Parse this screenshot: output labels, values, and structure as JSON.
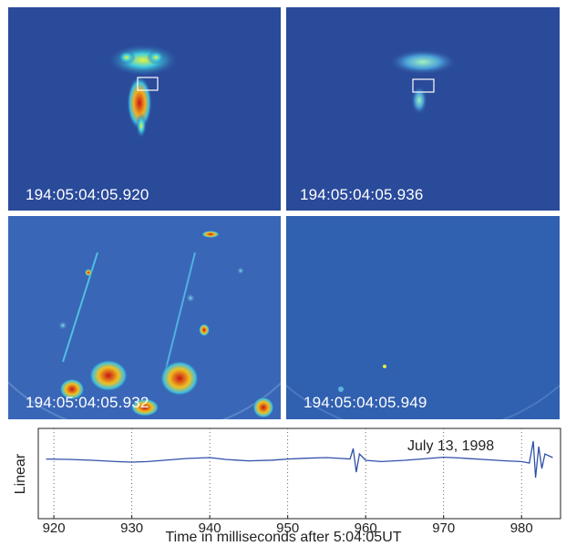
{
  "panels": [
    {
      "timestamp": "194:05:04:05.920"
    },
    {
      "timestamp": "194:05:04:05.936"
    },
    {
      "timestamp": "194:05:04:05.932"
    },
    {
      "timestamp": "194:05:04:05.949"
    }
  ],
  "colors": {
    "background_blue": "#2a4a9a",
    "hot_red": "#c81414",
    "trace_blue": "#3050a8"
  },
  "chart_data": {
    "type": "line",
    "annotation": "July 13, 1998",
    "ylabel": "Linear",
    "xlabel": "Time in milliseconds after 5:04:05UT",
    "xlim": [
      918,
      985
    ],
    "x_ticks": [
      920,
      930,
      940,
      950,
      960,
      970,
      980
    ],
    "x_tick_labels": [
      "920",
      "930",
      "940",
      "950",
      "960",
      "970",
      "980"
    ],
    "grid": "vertical dotted",
    "legend": "none",
    "series": [
      {
        "x": [
          919,
          922,
          925,
          928,
          930,
          932,
          935,
          937,
          940,
          942,
          945,
          948,
          950,
          952,
          955,
          957,
          958,
          958.4,
          958.8,
          959.2,
          960,
          962,
          965,
          968,
          970,
          972,
          975,
          978,
          980,
          981,
          981.5,
          981.8,
          982.2,
          982.6,
          983,
          984
        ],
        "y": [
          0.02,
          0.0,
          -0.05,
          -0.12,
          -0.15,
          -0.12,
          -0.02,
          0.05,
          0.1,
          0.0,
          -0.08,
          -0.04,
          0.02,
          0.06,
          0.1,
          0.05,
          0.02,
          0.6,
          -0.7,
          0.3,
          -0.05,
          -0.12,
          -0.05,
          0.05,
          0.12,
          0.08,
          0.0,
          -0.08,
          -0.12,
          -0.2,
          1.0,
          -1.0,
          0.7,
          -0.5,
          0.3,
          0.1
        ]
      }
    ]
  }
}
